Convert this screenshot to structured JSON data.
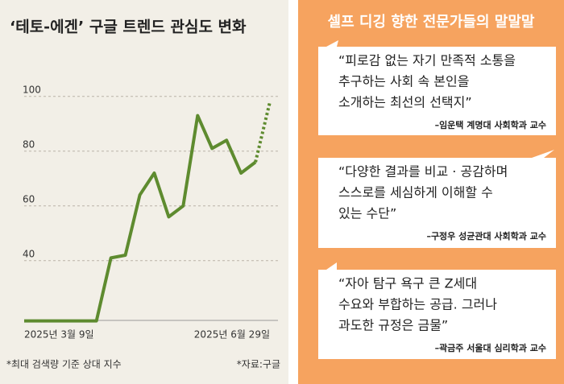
{
  "chart_data": {
    "type": "line",
    "title": "‘테토-에겐’ 구글 트렌드 관심도 변화",
    "categories": [
      "2025년 3월 9일",
      null,
      null,
      null,
      null,
      null,
      null,
      null,
      null,
      null,
      null,
      null,
      null,
      null,
      null,
      null,
      null,
      "2025년 6월 29일"
    ],
    "values": [
      18,
      18,
      18,
      18,
      18,
      18,
      41,
      42,
      64,
      72,
      56,
      60,
      93,
      81,
      84,
      72,
      76,
      98
    ],
    "color": "#5e8b2f",
    "ylim": [
      17,
      102
    ],
    "yticks": [
      40,
      60,
      80,
      100
    ],
    "grid": true,
    "note": "*최대 검색량 기준 상대 지수",
    "source": "*자료:구글"
  },
  "panel": {
    "title": "셀프 디깅 향한 전문가들의 말말말",
    "quotes": [
      {
        "lines": [
          "“피로감 없는 자기 만족적 소통을",
          "추구하는 사회 속 본인을",
          "소개하는 최선의 선택지”"
        ],
        "source": "–임운택 계명대 사회학과 교수"
      },
      {
        "lines": [
          "“다양한 결과를 비교 · 공감하며",
          "스스로를 세심하게 이해할 수",
          "있는 수단”"
        ],
        "source": "–구정우 성균관대 사회학과 교수"
      },
      {
        "lines": [
          "“자아 탐구 욕구 큰 Z세대",
          "수요와 부합하는 공급. 그러나",
          "과도한 규정은 금물”"
        ],
        "source": "–곽금주 서울대 심리학과 교수"
      }
    ]
  }
}
